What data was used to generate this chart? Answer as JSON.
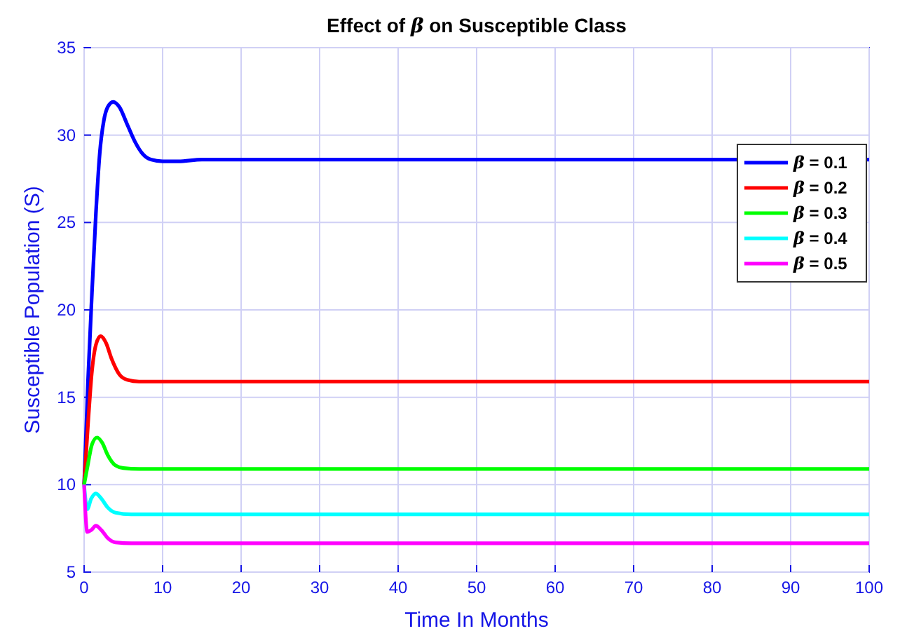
{
  "chart_data": {
    "type": "line",
    "title": "Effect of β on Susceptible Class",
    "xlabel": "Time In Months",
    "ylabel": "Susceptible Population (S)",
    "xlim": [
      0,
      100
    ],
    "xticks": [
      0,
      10,
      20,
      30,
      40,
      50,
      60,
      70,
      80,
      90,
      100
    ],
    "ylim": [
      5,
      35
    ],
    "yticks": [
      5,
      10,
      15,
      20,
      25,
      30,
      35
    ],
    "grid": true,
    "legend": "right",
    "line_style": "solid",
    "marker": "none",
    "series": [
      {
        "name": "β = 0.1",
        "color": "#0000ff",
        "x": [
          0,
          0.5,
          1,
          1.5,
          2,
          2.5,
          3,
          3.7,
          4.5,
          5.5,
          6.5,
          7.5,
          8.5,
          10,
          12,
          15,
          20,
          100
        ],
        "values": [
          10,
          16,
          21,
          25.5,
          29,
          30.8,
          31.6,
          31.9,
          31.6,
          30.6,
          29.6,
          28.9,
          28.6,
          28.5,
          28.5,
          28.6,
          28.6,
          28.6
        ]
      },
      {
        "name": "β = 0.2",
        "color": "#ff0000",
        "x": [
          0,
          0.5,
          1,
          1.5,
          2.1,
          2.8,
          3.5,
          4.5,
          5.5,
          7,
          100
        ],
        "values": [
          10,
          13.5,
          16.5,
          18,
          18.5,
          18.1,
          17.2,
          16.3,
          16,
          15.9,
          15.9
        ]
      },
      {
        "name": "β = 0.3",
        "color": "#00ff00",
        "x": [
          0,
          0.5,
          1,
          1.65,
          2.3,
          3,
          4,
          5,
          7,
          100
        ],
        "values": [
          10,
          11.2,
          12.3,
          12.7,
          12.4,
          11.7,
          11.1,
          10.95,
          10.9,
          10.9
        ]
      },
      {
        "name": "β = 0.4",
        "color": "#00ffff",
        "x": [
          0,
          0.4,
          0.9,
          1.5,
          2.2,
          3,
          4,
          6,
          100
        ],
        "values": [
          10,
          8.6,
          9.2,
          9.5,
          9.2,
          8.7,
          8.4,
          8.3,
          8.3
        ]
      },
      {
        "name": "β = 0.5",
        "color": "#ff00ff",
        "x": [
          0,
          0.4,
          0.9,
          1.5,
          2.2,
          3,
          4,
          6,
          100
        ],
        "values": [
          10,
          7.3,
          7.4,
          7.65,
          7.4,
          6.95,
          6.7,
          6.65,
          6.65
        ]
      }
    ]
  }
}
